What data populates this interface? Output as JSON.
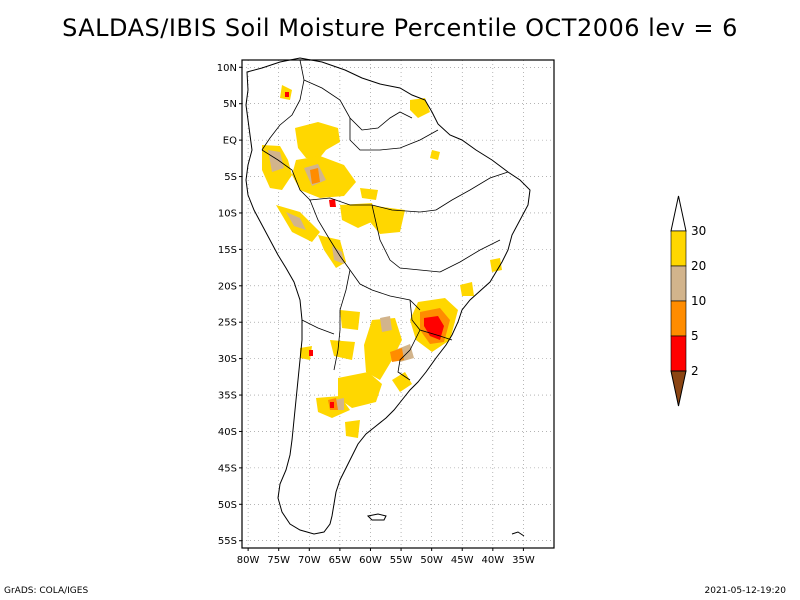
{
  "title": "SALDAS/IBIS Soil Moisture Percentile OCT2006 lev = 6",
  "footer": {
    "left": "GrADS: COLA/IGES",
    "right": "2021-05-12-19:20"
  },
  "map": {
    "lon_range": [
      -81,
      -30
    ],
    "lat_range": [
      -56,
      11
    ],
    "lat_ticks": [
      {
        "value": 10,
        "label": "10N"
      },
      {
        "value": 5,
        "label": "5N"
      },
      {
        "value": 0,
        "label": "EQ"
      },
      {
        "value": -5,
        "label": "5S"
      },
      {
        "value": -10,
        "label": "10S"
      },
      {
        "value": -15,
        "label": "15S"
      },
      {
        "value": -20,
        "label": "20S"
      },
      {
        "value": -25,
        "label": "25S"
      },
      {
        "value": -30,
        "label": "30S"
      },
      {
        "value": -35,
        "label": "35S"
      },
      {
        "value": -40,
        "label": "40S"
      },
      {
        "value": -45,
        "label": "45S"
      },
      {
        "value": -50,
        "label": "50S"
      },
      {
        "value": -55,
        "label": "55S"
      }
    ],
    "lon_ticks": [
      {
        "value": -80,
        "label": "80W"
      },
      {
        "value": -75,
        "label": "75W"
      },
      {
        "value": -70,
        "label": "70W"
      },
      {
        "value": -65,
        "label": "65W"
      },
      {
        "value": -60,
        "label": "60W"
      },
      {
        "value": -55,
        "label": "55W"
      },
      {
        "value": -50,
        "label": "50W"
      },
      {
        "value": -45,
        "label": "45W"
      },
      {
        "value": -40,
        "label": "40W"
      },
      {
        "value": -35,
        "label": "35W"
      }
    ],
    "grid": true
  },
  "legend": {
    "levels": [
      "2",
      "5",
      "10",
      "20",
      "30"
    ],
    "colors": {
      "below_2": "#8b4513",
      "2_5": "#ff0000",
      "5_10": "#ff8c00",
      "10_20": "#d2b48c",
      "20_30": "#ffd700",
      "above_30": "#ffffff"
    }
  }
}
